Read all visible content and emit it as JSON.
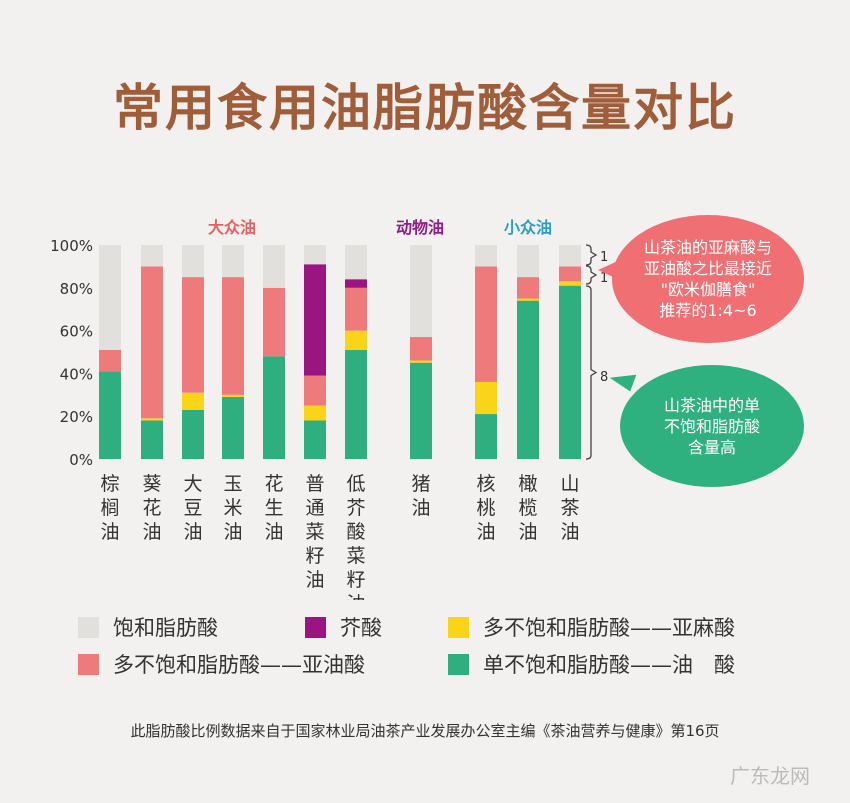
{
  "title": "常用食用油脂肪酸含量对比",
  "chart_data": {
    "type": "bar",
    "stacked": true,
    "ylim": [
      0,
      100
    ],
    "yticks": [
      "0%",
      "20%",
      "40%",
      "60%",
      "80%",
      "100%"
    ],
    "groups": [
      {
        "label": "大众油",
        "color": "#e8605f"
      },
      {
        "label": "动物油",
        "color": "#8e1d86"
      },
      {
        "label": "小众油",
        "color": "#2a9ec9"
      }
    ],
    "categories": [
      "棕榈油",
      "葵花油",
      "大豆油",
      "玉米油",
      "花生油",
      "普通菜籽油",
      "低芥酸菜籽油",
      "猪油",
      "核桃油",
      "橄榄油",
      "山茶油"
    ],
    "series": [
      {
        "name": "单不饱和脂肪酸——油　酸",
        "color": "#2fae7f",
        "values": [
          41,
          18,
          23,
          29,
          48,
          18,
          51,
          45,
          21,
          74,
          81
        ]
      },
      {
        "name": "多不饱和脂肪酸——亚麻酸",
        "color": "#fad418",
        "values": [
          0,
          1,
          8,
          1,
          0,
          7,
          9,
          1,
          15,
          1,
          2
        ]
      },
      {
        "name": "多不饱和脂肪酸——亚油酸",
        "color": "#ef7a7b",
        "values": [
          10,
          71,
          54,
          55,
          32,
          14,
          20,
          11,
          54,
          10,
          7
        ]
      },
      {
        "name": "芥酸",
        "color": "#9b1580",
        "values": [
          0,
          0,
          0,
          0,
          0,
          52,
          4,
          0,
          0,
          0,
          0
        ]
      },
      {
        "name": "饱和脂肪酸",
        "color": "#e1e0dc",
        "values": [
          49,
          10,
          15,
          15,
          20,
          9,
          16,
          43,
          10,
          15,
          10
        ]
      }
    ],
    "ratio_labels": [
      "1",
      "1",
      "8"
    ]
  },
  "legend": [
    {
      "label": "饱和脂肪酸",
      "color": "#e1e0dc"
    },
    {
      "label": "芥酸",
      "color": "#9b1580"
    },
    {
      "label": "多不饱和脂肪酸——亚麻酸",
      "color": "#fad418"
    },
    {
      "label": "多不饱和脂肪酸——亚油酸",
      "color": "#ef7a7b"
    },
    {
      "label": "单不饱和脂肪酸——油　酸",
      "color": "#2fae7f"
    }
  ],
  "callouts": {
    "red": [
      "山茶油的亚麻酸与",
      "亚油酸之比最接近",
      "\"欧米伽膳食\"",
      "推荐的1:4~6"
    ],
    "green": [
      "山茶油中的单",
      "不饱和脂肪酸",
      "含量高"
    ]
  },
  "source": "此脂肪酸比例数据来自于国家林业局油茶产业发展办公室主编《茶油营养与健康》第16页",
  "watermark": "广东龙网"
}
